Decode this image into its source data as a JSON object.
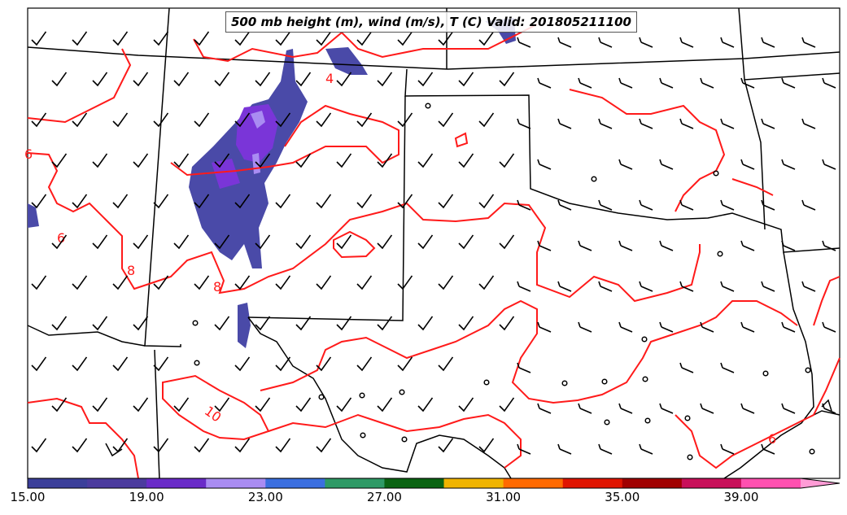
{
  "title": "500 mb height (m), wind (m/s), T (C) Valid: 201805211100",
  "colorbar": {
    "tick_labels": [
      "15.00",
      "19.00",
      "23.00",
      "27.00",
      "31.00",
      "35.00",
      "39.00"
    ],
    "colors": [
      "#3b3f9a",
      "#4b3b9e",
      "#6a2bc8",
      "#a98cf2",
      "#3b6fe0",
      "#2e9a66",
      "#0a6412",
      "#f0b400",
      "#ff6a00",
      "#e01400",
      "#a00000",
      "#c8105a",
      "#ff50b0",
      "#ff9cd6"
    ]
  },
  "contour_labels": [
    "4",
    "6",
    "6",
    "8",
    "8",
    "10",
    "6"
  ],
  "colors": {
    "contour": "#ff1a1a",
    "border": "#000000",
    "shade_main": "#4a4aa8",
    "shade_accent": "#7a35d8",
    "shade_light": "#a98cf2"
  }
}
